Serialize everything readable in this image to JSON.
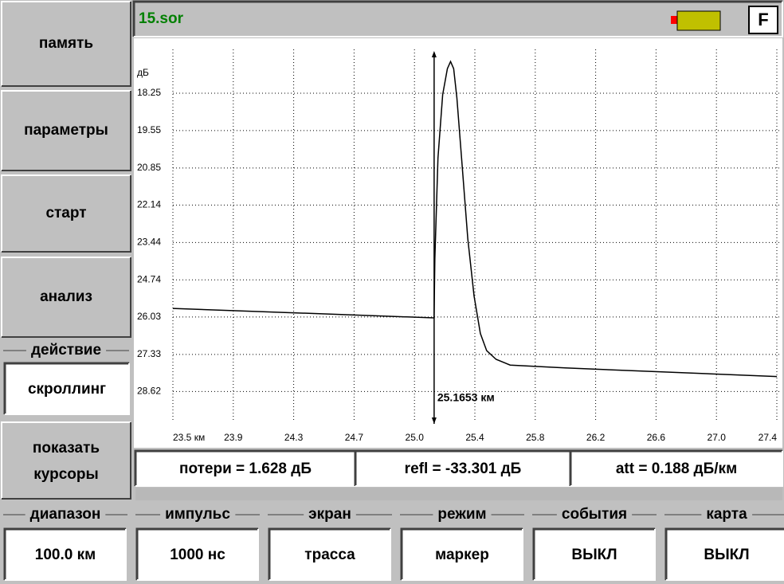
{
  "file_name": "15.sor",
  "indicator": "F",
  "left_menu": [
    "память",
    "параметры",
    "старт",
    "анализ"
  ],
  "action": {
    "label": "действие",
    "value": "скроллинг"
  },
  "show_cursors": [
    "показать",
    "курсоры"
  ],
  "results": [
    "потери = 1.628 дБ",
    "refl = -33.301 дБ",
    "att = 0.188 дБ/км"
  ],
  "params": [
    {
      "label": "диапазон",
      "value": "100.0 км"
    },
    {
      "label": "импульс",
      "value": "1000 нс"
    },
    {
      "label": "экран",
      "value": "трасса"
    },
    {
      "label": "режим",
      "value": "маркер"
    },
    {
      "label": "события",
      "value": "ВЫКЛ"
    },
    {
      "label": "карта",
      "value": "ВЫКЛ"
    }
  ],
  "chart_data": {
    "type": "line",
    "ylabel": "дБ",
    "x": [
      23.5,
      25.165,
      25.17,
      25.19,
      25.22,
      25.25,
      25.27,
      25.29,
      25.31,
      25.34,
      25.38,
      25.42,
      25.46,
      25.5,
      25.56,
      25.65,
      26.0,
      27.35
    ],
    "values": [
      25.73,
      26.06,
      24.0,
      20.5,
      18.3,
      17.4,
      17.15,
      17.4,
      18.4,
      20.5,
      23.3,
      25.3,
      26.6,
      27.2,
      27.5,
      27.7,
      27.8,
      28.1
    ],
    "color": "#000000",
    "xlim": [
      23.5,
      27.35
    ],
    "ylim": [
      16.95,
      29.91
    ],
    "y_inverted": true,
    "grid": true,
    "xticks": [
      {
        "value": 23.5,
        "label": "23.5 км"
      },
      {
        "value": 23.885,
        "label": "23.9"
      },
      {
        "value": 24.27,
        "label": "24.3"
      },
      {
        "value": 24.655,
        "label": "24.7"
      },
      {
        "value": 25.04,
        "label": "25.0"
      },
      {
        "value": 25.425,
        "label": "25.4"
      },
      {
        "value": 25.81,
        "label": "25.8"
      },
      {
        "value": 26.195,
        "label": "26.2"
      },
      {
        "value": 26.58,
        "label": "26.6"
      },
      {
        "value": 26.965,
        "label": "27.0"
      },
      {
        "value": 27.35,
        "label": "27.4"
      }
    ],
    "yticks": [
      18.25,
      19.55,
      20.85,
      22.14,
      23.44,
      24.74,
      26.03,
      27.33,
      28.62
    ],
    "cursor": 25.1653,
    "cursor_label": "25.1653 км"
  }
}
